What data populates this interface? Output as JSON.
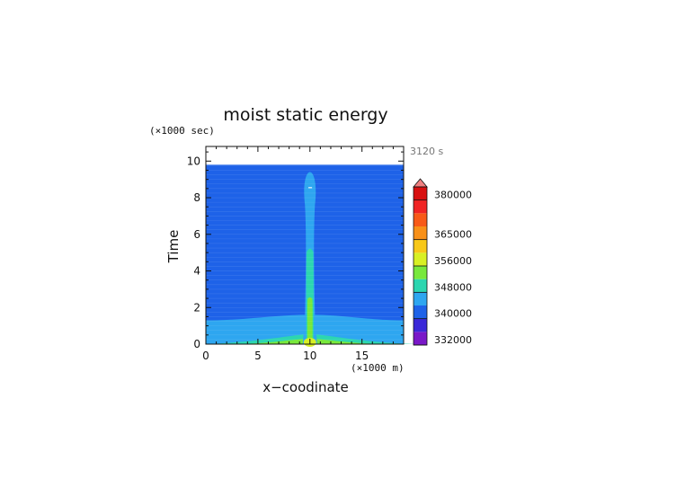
{
  "chart_data": {
    "type": "heatmap",
    "title": "moist static energy",
    "xlabel": "x−coodinate",
    "ylabel": "Time",
    "x_unit": "(×1000 m)",
    "y_unit": "(×1000 sec)",
    "timestamp": "3120 s",
    "xlim": [
      0,
      19
    ],
    "ylim": [
      0,
      10.8
    ],
    "data_top_y": 9.8,
    "x_ticks": [
      0,
      5,
      10,
      15
    ],
    "y_ticks": [
      0,
      2,
      4,
      6,
      8,
      10
    ],
    "grid": false,
    "colorbar": {
      "placement": "right",
      "levels": [
        332000,
        336000,
        340000,
        344000,
        348000,
        352000,
        356000,
        360000,
        365000,
        370000,
        375000,
        380000,
        385000
      ],
      "colors": [
        "#7a18c8",
        "#3a28d8",
        "#1e62e8",
        "#2ea6f0",
        "#2cd6b0",
        "#78e83c",
        "#d8f024",
        "#f8c818",
        "#f89018",
        "#f85a18",
        "#f02424",
        "#d81010"
      ],
      "overflow_color": "#f08080",
      "tick_labels": [
        332000,
        340000,
        348000,
        356000,
        365000,
        380000
      ]
    },
    "field": {
      "background_value": 342000,
      "plume_center_x": 10,
      "features": [
        {
          "value": 344000,
          "desc": "surface layer",
          "x_range": [
            0,
            19
          ],
          "y_top_edges": 1.3,
          "y_top_center": 1.6
        },
        {
          "value": 344000,
          "desc": "column",
          "x_center": 10,
          "half_width": 0.6,
          "y_range": [
            0,
            9.4
          ]
        },
        {
          "value": 348000,
          "desc": "column",
          "x_center": 10,
          "half_width": 0.35,
          "y_range": [
            0,
            5.3
          ]
        },
        {
          "value": 352000,
          "desc": "column",
          "x_center": 10,
          "half_width": 0.25,
          "y_range": [
            0,
            2.6
          ]
        },
        {
          "value": 356000,
          "desc": "near-surface core",
          "x_center": 10,
          "half_width": 0.2,
          "y_range": [
            0,
            0.3
          ]
        }
      ]
    }
  }
}
